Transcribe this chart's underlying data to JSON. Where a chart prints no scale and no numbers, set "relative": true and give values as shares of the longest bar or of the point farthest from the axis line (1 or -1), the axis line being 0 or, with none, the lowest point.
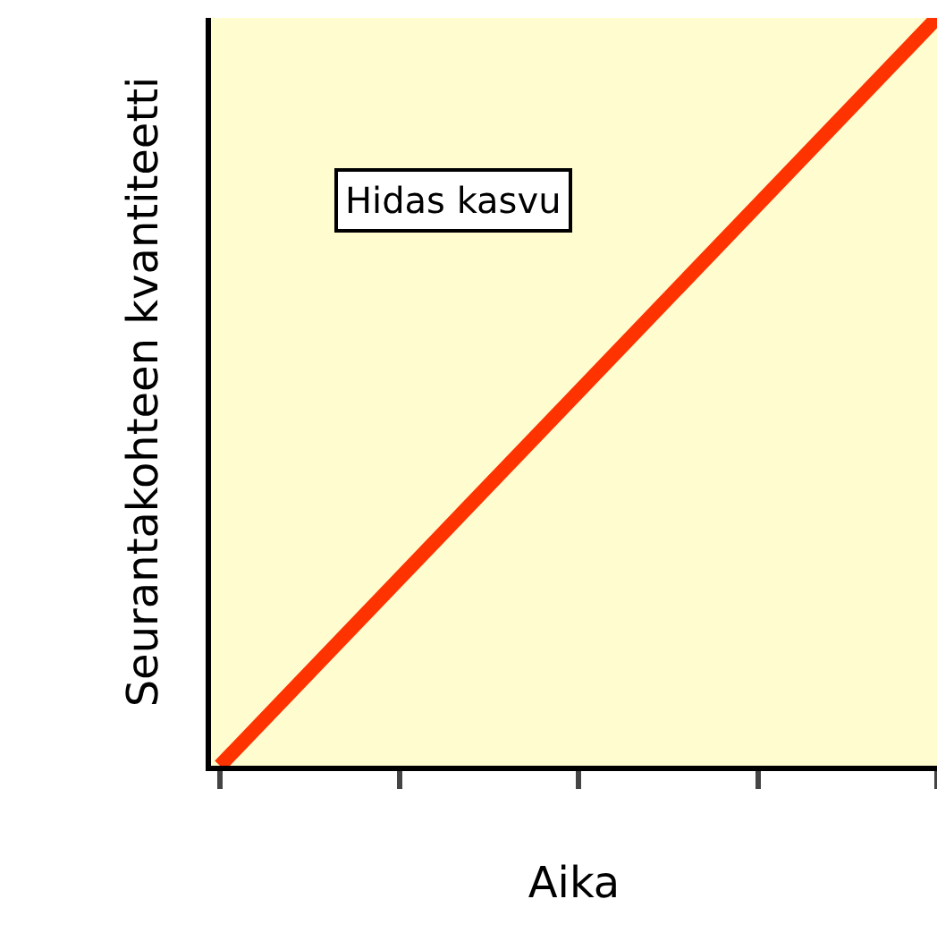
{
  "chart_data": {
    "type": "line",
    "relative": true,
    "xlabel": "Aika",
    "ylabel": "Seurantakohteen kvantiteetti",
    "categories": [
      null,
      null,
      null,
      null,
      null
    ],
    "series": [
      {
        "color": "#ff3300",
        "values": [
          0,
          0.25,
          0.5,
          0.75,
          1
        ]
      }
    ],
    "annotations": [
      "Hidas kasvu"
    ],
    "tick_labels": false,
    "grid": false
  }
}
